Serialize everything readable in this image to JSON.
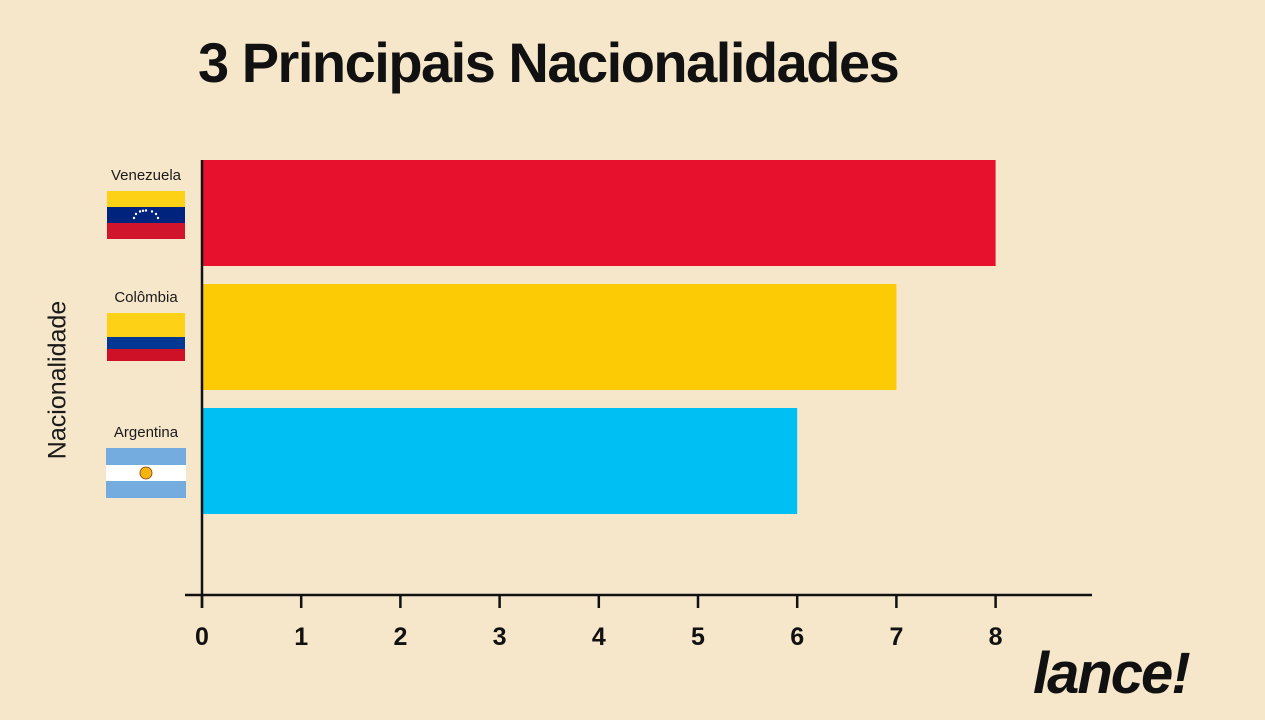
{
  "title": "3 Principais Nacionalidades",
  "brand": "lance!",
  "chart_data": {
    "type": "bar",
    "orientation": "horizontal",
    "title": "3 Principais Nacionalidades",
    "xlabel": "",
    "ylabel": "Nacionalidade",
    "categories": [
      "Venezuela",
      "Colômbia",
      "Argentina"
    ],
    "values": [
      8,
      7,
      6
    ],
    "colors": [
      "#e8112d",
      "#fccb05",
      "#00c0f3"
    ],
    "flags": [
      "venezuela-flag-icon",
      "colombia-flag-icon",
      "argentina-flag-icon"
    ],
    "xlim": [
      0,
      8
    ],
    "xticks": [
      "0",
      "1",
      "2",
      "3",
      "4",
      "5",
      "6",
      "7",
      "8"
    ],
    "grid": false,
    "legend": "none"
  }
}
